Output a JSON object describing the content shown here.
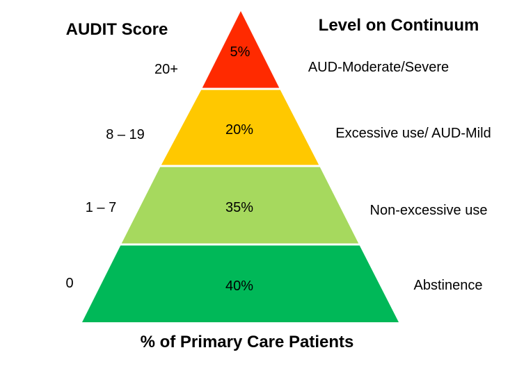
{
  "headers": {
    "left": "AUDIT Score",
    "right": "Level on Continuum",
    "bottom": "% of Primary Care Patients"
  },
  "levels": [
    {
      "score": "20+",
      "percent": "5%",
      "level": "AUD-Moderate/Severe",
      "color": "#ff2a00"
    },
    {
      "score": "8 – 19",
      "percent": "20%",
      "level": "Excessive use/ AUD-Mild",
      "color": "#ffc800"
    },
    {
      "score": "1 – 7",
      "percent": "35%",
      "level": "Non-excessive use",
      "color": "#a6d95e"
    },
    {
      "score": "0",
      "percent": "40%",
      "level": "Abstinence",
      "color": "#00b858"
    }
  ],
  "colors": {
    "separator": "#ffffff",
    "text": "#000000"
  }
}
